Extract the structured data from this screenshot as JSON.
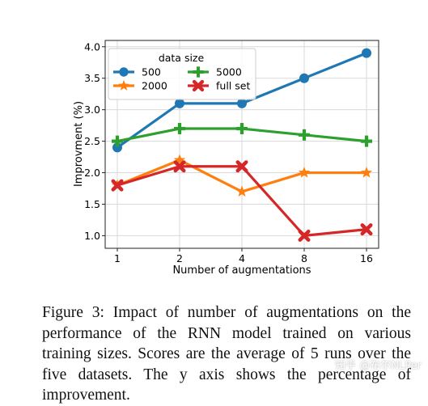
{
  "chart_data": {
    "type": "line",
    "x": [
      "1",
      "2",
      "4",
      "8",
      "16"
    ],
    "xlabel": "Number of augmentations",
    "ylabel": "Improvment (%)",
    "ylim": [
      0.8,
      4.1
    ],
    "yticks": [
      "1.0",
      "1.5",
      "2.0",
      "2.5",
      "3.0",
      "3.5",
      "4.0"
    ],
    "grid": true,
    "legend": {
      "title": "data size",
      "placement": "top-left"
    },
    "series": [
      {
        "name": "500",
        "values": [
          2.4,
          3.1,
          3.1,
          3.5,
          3.9
        ],
        "color": "#1f77b4",
        "marker": "circle"
      },
      {
        "name": "2000",
        "values": [
          1.8,
          2.2,
          1.7,
          2.0,
          2.0
        ],
        "color": "#ff7f0e",
        "marker": "star"
      },
      {
        "name": "5000",
        "values": [
          2.5,
          2.7,
          2.7,
          2.6,
          2.5
        ],
        "color": "#2ca02c",
        "marker": "plus"
      },
      {
        "name": "full set",
        "values": [
          1.8,
          2.1,
          2.1,
          1.0,
          1.1
        ],
        "color": "#d62728",
        "marker": "x"
      }
    ]
  },
  "caption": "Figure 3: Impact of number of augmentations on the performance of the RNN model trained on various training sizes. Scores are the average of 5 runs over the five datasets. The y axis shows the percentage of improvement.",
  "watermark": "知乎 @布尔NLPer"
}
